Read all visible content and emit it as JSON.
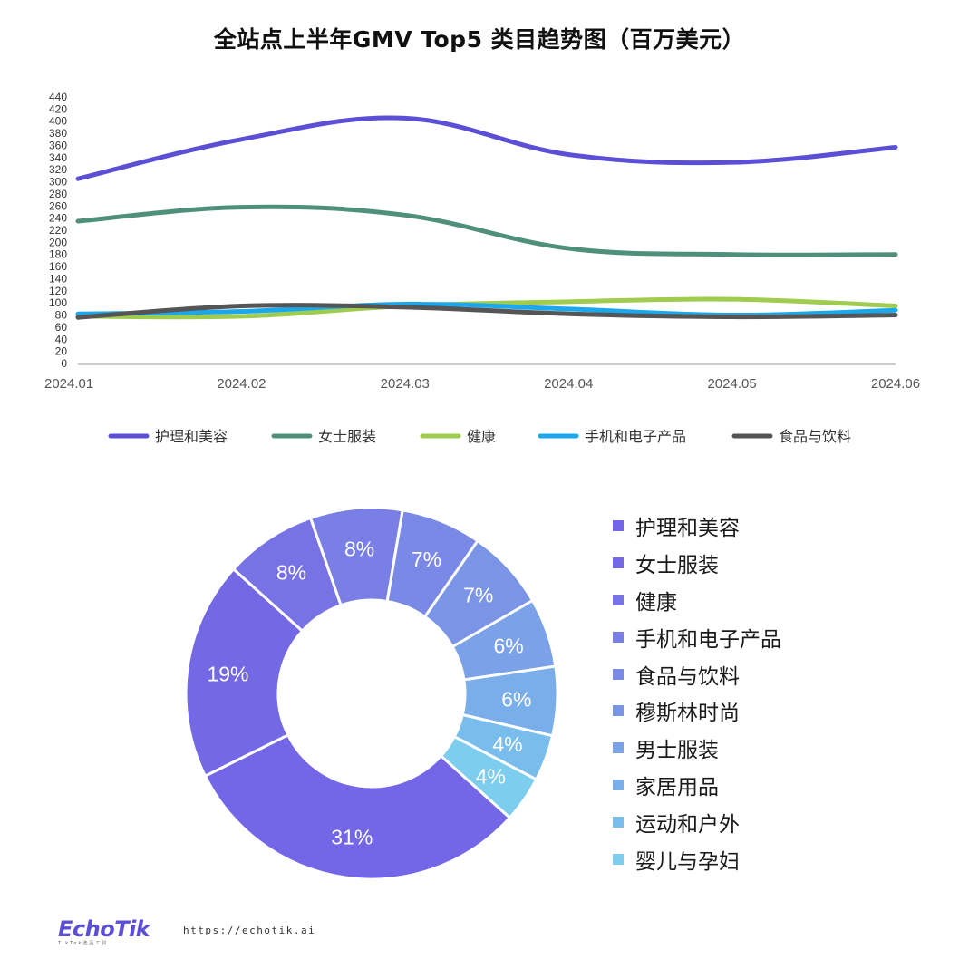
{
  "title": "全站点上半年GMV Top5 类目趋势图（百万美元）",
  "chart_data": [
    {
      "type": "line",
      "title": "全站点上半年GMV Top5 类目趋势图（百万美元）",
      "x": [
        "2024.01",
        "2024.02",
        "2024.03",
        "2024.04",
        "2024.05",
        "2024.06"
      ],
      "ylim": [
        0,
        440
      ],
      "yticks": [
        0,
        20,
        40,
        60,
        80,
        100,
        120,
        140,
        160,
        180,
        200,
        220,
        240,
        260,
        280,
        300,
        320,
        340,
        360,
        380,
        400,
        420,
        440
      ],
      "grid": false,
      "legend": "bottom",
      "series": [
        {
          "name": "护理和美容",
          "values": [
            305,
            370,
            405,
            345,
            332,
            357
          ],
          "color": "#5b4fd6"
        },
        {
          "name": "女士服装",
          "values": [
            235,
            258,
            245,
            190,
            180,
            180
          ],
          "color": "#4f9178"
        },
        {
          "name": "健康",
          "values": [
            78,
            78,
            95,
            102,
            106,
            95
          ],
          "color": "#9fcb4f"
        },
        {
          "name": "手机和电子产品",
          "values": [
            82,
            86,
            98,
            90,
            80,
            88
          ],
          "color": "#1aa7ec"
        },
        {
          "name": "食品与饮料",
          "values": [
            76,
            95,
            93,
            82,
            77,
            80
          ],
          "color": "#555555"
        }
      ]
    },
    {
      "type": "pie",
      "donut": true,
      "legend": "right",
      "categories": [
        "护理和美容",
        "女士服装",
        "健康",
        "手机和电子产品",
        "食品与饮料",
        "穆斯林时尚",
        "男士服装",
        "家居用品",
        "运动和户外",
        "婴儿与孕妇"
      ],
      "values": [
        31,
        19,
        8,
        8,
        7,
        7,
        6,
        6,
        4,
        4
      ],
      "labels": [
        "31%",
        "19%",
        "8%",
        "8%",
        "7%",
        "7%",
        "6%",
        "6%",
        "4%",
        "4%"
      ],
      "colors": [
        "#7367e8",
        "#7369e4",
        "#7873e4",
        "#7a7fe6",
        "#7a89e6",
        "#7b95e6",
        "#7ba2e8",
        "#7aaeea",
        "#79bdec",
        "#7dcdee"
      ]
    }
  ],
  "footer": {
    "logo": "EchoTik",
    "logo_sub": "TikTok选品工具",
    "url": "https://echotik.ai"
  }
}
